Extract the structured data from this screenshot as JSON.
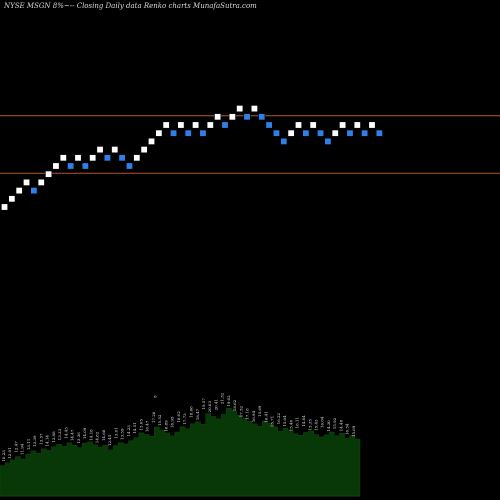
{
  "title": "NYSE MSGN  8%~-- Closing Daily data  Renko  charts MunafaSutra.com",
  "chart_data": [
    {
      "type": "renko",
      "title": "NYSE MSGN  8%~-- Closing Daily data  Renko  charts MunafaSutra.com",
      "xlabel": "",
      "ylabel": "",
      "grid": false,
      "legend": "none",
      "colors": {
        "up": "#ffffff",
        "down": "#2f7fe8",
        "reference_lines": "#b05a2a",
        "background": "#000000"
      },
      "reference_levels": [
        61,
        54
      ],
      "ylim": [
        50,
        75
      ],
      "bricks": [
        {
          "level": 50,
          "dir": "up"
        },
        {
          "level": 51,
          "dir": "up"
        },
        {
          "level": 52,
          "dir": "up"
        },
        {
          "level": 53,
          "dir": "up"
        },
        {
          "level": 52,
          "dir": "down"
        },
        {
          "level": 53,
          "dir": "up"
        },
        {
          "level": 54,
          "dir": "up"
        },
        {
          "level": 55,
          "dir": "up"
        },
        {
          "level": 56,
          "dir": "up"
        },
        {
          "level": 55,
          "dir": "down"
        },
        {
          "level": 56,
          "dir": "up"
        },
        {
          "level": 55,
          "dir": "down"
        },
        {
          "level": 56,
          "dir": "up"
        },
        {
          "level": 57,
          "dir": "up"
        },
        {
          "level": 56,
          "dir": "down"
        },
        {
          "level": 57,
          "dir": "up"
        },
        {
          "level": 56,
          "dir": "down"
        },
        {
          "level": 55,
          "dir": "down"
        },
        {
          "level": 56,
          "dir": "up"
        },
        {
          "level": 57,
          "dir": "up"
        },
        {
          "level": 58,
          "dir": "up"
        },
        {
          "level": 59,
          "dir": "up"
        },
        {
          "level": 60,
          "dir": "up"
        },
        {
          "level": 59,
          "dir": "down"
        },
        {
          "level": 60,
          "dir": "up"
        },
        {
          "level": 59,
          "dir": "down"
        },
        {
          "level": 60,
          "dir": "up"
        },
        {
          "level": 59,
          "dir": "down"
        },
        {
          "level": 60,
          "dir": "up"
        },
        {
          "level": 61,
          "dir": "up"
        },
        {
          "level": 60,
          "dir": "down"
        },
        {
          "level": 61,
          "dir": "up"
        },
        {
          "level": 62,
          "dir": "up"
        },
        {
          "level": 61,
          "dir": "down"
        },
        {
          "level": 62,
          "dir": "up"
        },
        {
          "level": 61,
          "dir": "down"
        },
        {
          "level": 60,
          "dir": "down"
        },
        {
          "level": 59,
          "dir": "down"
        },
        {
          "level": 58,
          "dir": "down"
        },
        {
          "level": 59,
          "dir": "up"
        },
        {
          "level": 60,
          "dir": "up"
        },
        {
          "level": 59,
          "dir": "down"
        },
        {
          "level": 60,
          "dir": "up"
        },
        {
          "level": 59,
          "dir": "down"
        },
        {
          "level": 58,
          "dir": "down"
        },
        {
          "level": 59,
          "dir": "up"
        },
        {
          "level": 60,
          "dir": "up"
        },
        {
          "level": 59,
          "dir": "down"
        },
        {
          "level": 60,
          "dir": "up"
        },
        {
          "level": 59,
          "dir": "down"
        },
        {
          "level": 60,
          "dir": "up"
        },
        {
          "level": 59,
          "dir": "down"
        }
      ]
    },
    {
      "type": "area",
      "xlabel": "",
      "ylabel": "",
      "grid": false,
      "colors": {
        "fill": "#083808"
      },
      "values": [
        13.4,
        14.1,
        14.8,
        15.6,
        15.0,
        16.2,
        17.0,
        16.4,
        17.5,
        17.1,
        18.0,
        18.6,
        18.1,
        19.0,
        18.4,
        17.8,
        18.9,
        19.2,
        18.5,
        17.9,
        18.4,
        17.2,
        18.3,
        19.0,
        18.7,
        19.5,
        20.2,
        21.4,
        21.0,
        20.6,
        22.8,
        22.1,
        21.4,
        20.7,
        21.6,
        22.9,
        22.4,
        23.6,
        24.1,
        23.5,
        26.1,
        25.4,
        24.8,
        25.9,
        27.4,
        26.8,
        25.7,
        24.9,
        24.2,
        23.6,
        23.0,
        24.3,
        23.7,
        22.9,
        21.8,
        22.5,
        21.9,
        21.2,
        20.8,
        21.5,
        21.9,
        21.0,
        20.4,
        20.9,
        21.6,
        20.7,
        21.3,
        20.1,
        20.8,
        19.9,
        19.4
      ]
    }
  ],
  "volume_labels": [
    "10.23",
    "12.01",
    "12.47",
    "11.94",
    "13.11",
    "13.39",
    "13.57",
    "14.14",
    "13.88",
    "13.33",
    "14.43",
    "14.47",
    "13.36",
    "14.09",
    "14.18",
    "14.82",
    "14.68",
    "12.45",
    "13.01",
    "13.59",
    "14.23",
    "14.51",
    "15.05",
    "16.47",
    "17.26",
    "15.52",
    "16.89",
    "16.95",
    "18.02",
    "17.73",
    "18.66",
    "18.47",
    "19.57",
    "20.03",
    "20.41",
    "21.32",
    "19.02",
    "18.62",
    "17.52",
    "17.18",
    "16.94",
    "15.69",
    "16.41",
    "15.71",
    "16.22",
    "15.04",
    "15.40",
    "16.11",
    "14.84",
    "15.35",
    "15.43",
    "16.04",
    "14.30",
    "15.92",
    "14.48",
    "16.54",
    "15.69"
  ],
  "top_marker": "0"
}
